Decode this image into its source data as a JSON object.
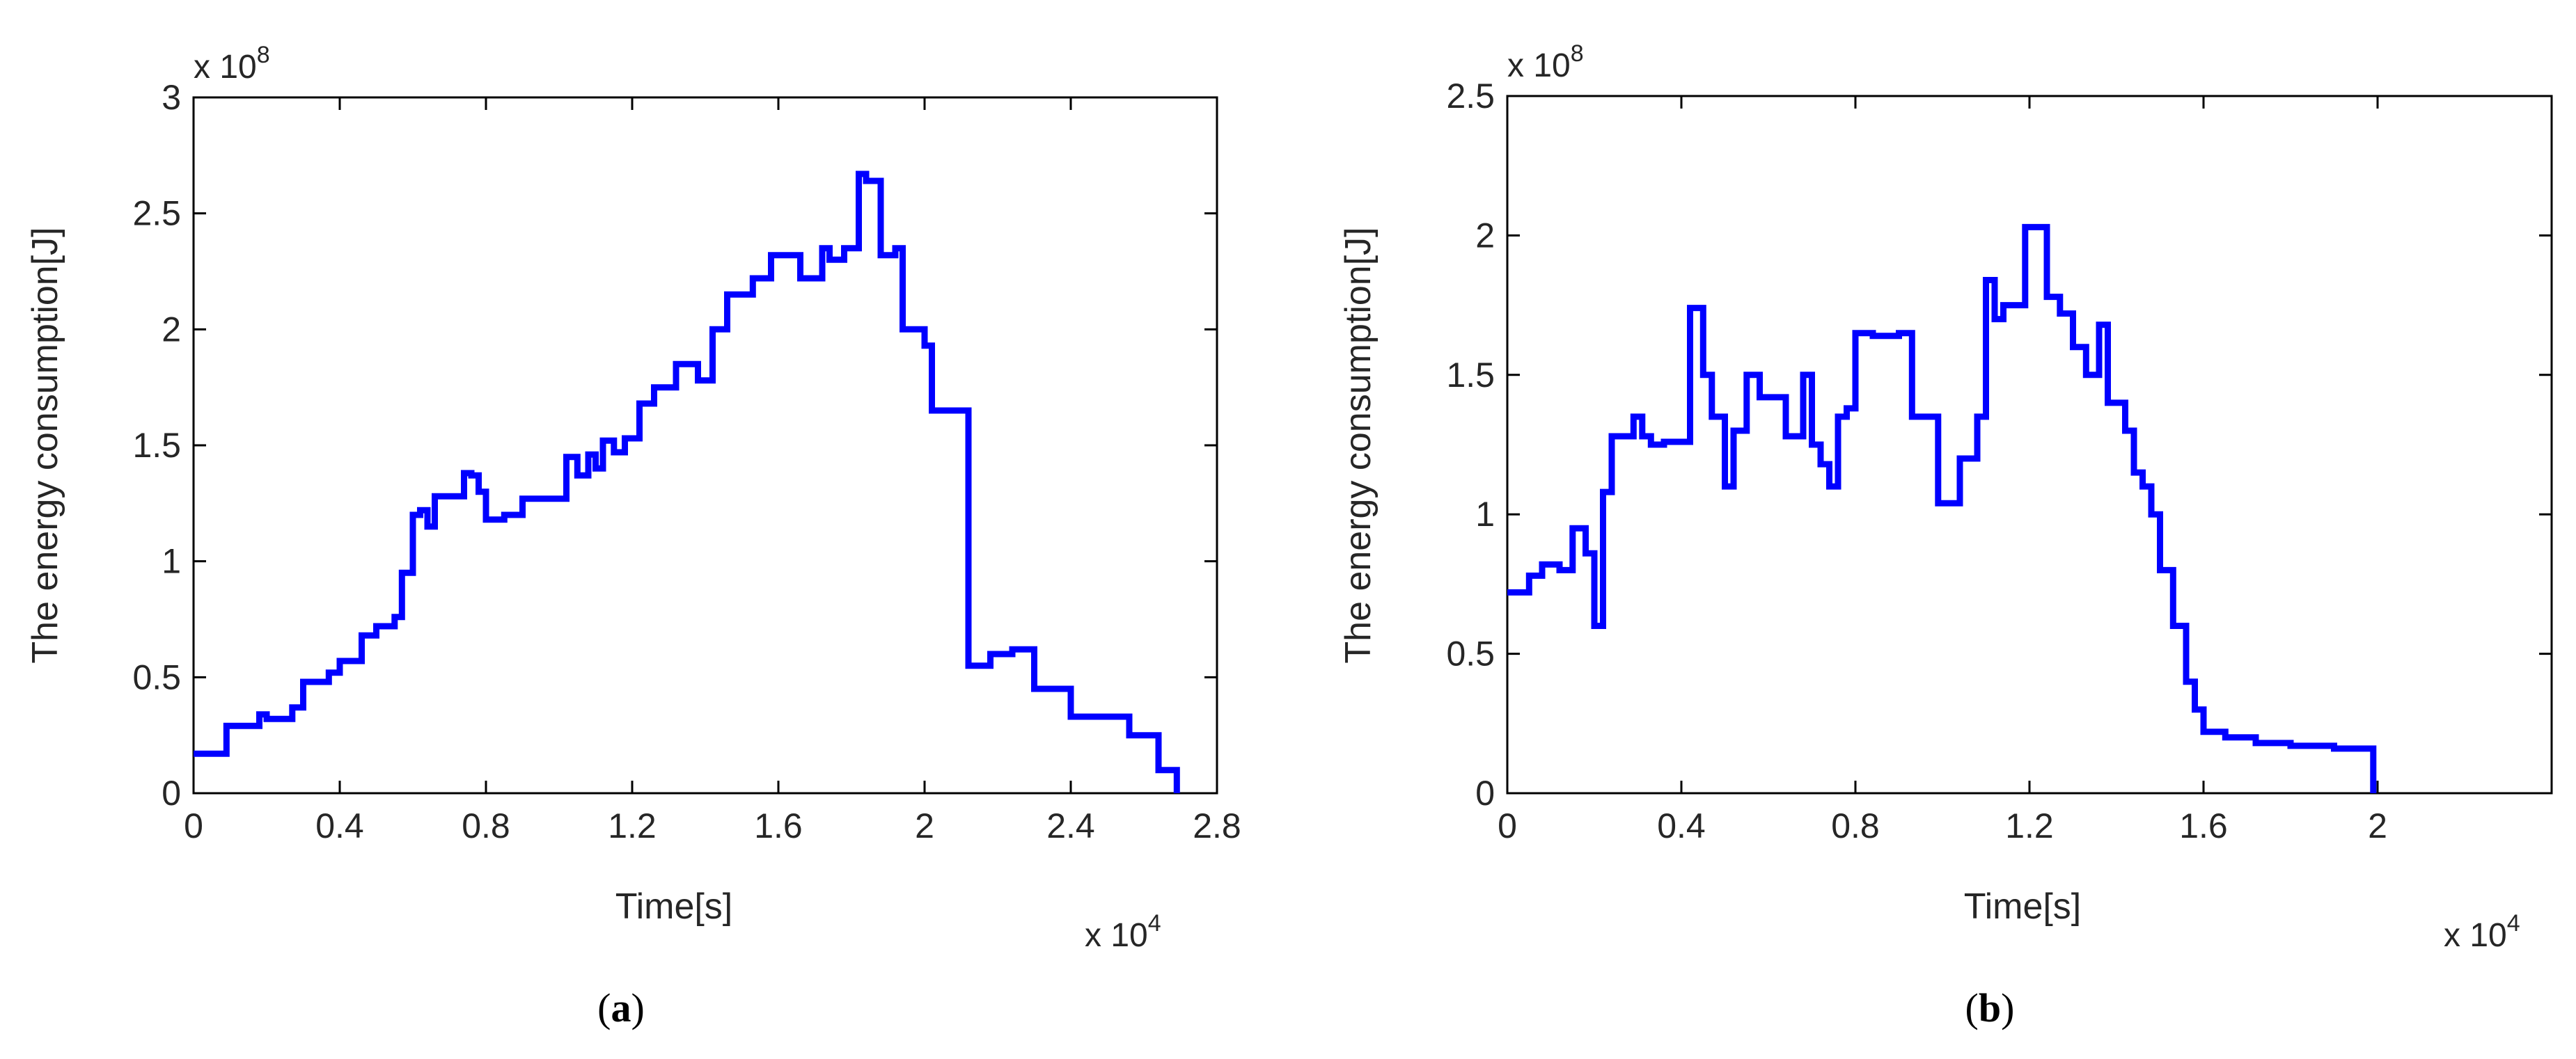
{
  "figure": {
    "panels": [
      {
        "caption_open": "(",
        "caption_letter": "a",
        "caption_close": ")",
        "x_multiplier": "x 10",
        "x_multiplier_exp": "4",
        "y_multiplier": "x 10",
        "y_multiplier_exp": "8"
      },
      {
        "caption_open": "(",
        "caption_letter": "b",
        "caption_close": ")",
        "x_multiplier": "x 10",
        "x_multiplier_exp": "4",
        "y_multiplier": "x 10",
        "y_multiplier_exp": "8"
      }
    ]
  },
  "chart_data": [
    {
      "type": "line",
      "title": "",
      "xlabel": "Time[s]",
      "ylabel": "The energy consumption[J]",
      "xlim": [
        0,
        2.8
      ],
      "ylim": [
        0,
        3
      ],
      "x_ticks": [
        0,
        0.4,
        0.8,
        1.2,
        1.6,
        2,
        2.4,
        2.8
      ],
      "x_tick_labels": [
        "0",
        "0.4",
        "0.8",
        "1.2",
        "1.6",
        "2",
        "2.4",
        "2.8"
      ],
      "y_ticks": [
        0,
        0.5,
        1,
        1.5,
        2,
        2.5,
        3
      ],
      "y_tick_labels": [
        "0",
        "0.5",
        "1",
        "1.5",
        "2",
        "2.5",
        "3"
      ],
      "grid": false,
      "line_color": "#0000ff",
      "series": [
        {
          "step": true,
          "x": [
            0,
            0.09,
            0.18,
            0.2,
            0.27,
            0.3,
            0.37,
            0.4,
            0.46,
            0.5,
            0.55,
            0.57,
            0.6,
            0.62,
            0.64,
            0.66,
            0.74,
            0.76,
            0.78,
            0.8,
            0.85,
            0.9,
            1.02,
            1.05,
            1.08,
            1.1,
            1.12,
            1.15,
            1.18,
            1.22,
            1.26,
            1.32,
            1.38,
            1.42,
            1.46,
            1.53,
            1.58,
            1.66,
            1.72,
            1.74,
            1.78,
            1.82,
            1.84,
            1.88,
            1.92,
            1.94,
            2.0,
            2.02,
            2.12,
            2.18,
            2.24,
            2.3,
            2.4,
            2.56,
            2.64,
            2.69
          ],
          "y": [
            0.17,
            0.29,
            0.34,
            0.32,
            0.37,
            0.48,
            0.52,
            0.57,
            0.68,
            0.72,
            0.76,
            0.95,
            1.2,
            1.22,
            1.15,
            1.28,
            1.38,
            1.37,
            1.3,
            1.18,
            1.2,
            1.27,
            1.45,
            1.37,
            1.46,
            1.4,
            1.52,
            1.47,
            1.53,
            1.68,
            1.75,
            1.85,
            1.78,
            2.0,
            2.15,
            2.22,
            2.32,
            2.22,
            2.35,
            2.3,
            2.35,
            2.67,
            2.64,
            2.32,
            2.35,
            2.0,
            1.93,
            1.65,
            0.55,
            0.6,
            0.62,
            0.45,
            0.33,
            0.25,
            0.1,
            0.0
          ]
        }
      ]
    },
    {
      "type": "line",
      "title": "",
      "xlabel": "Time[s]",
      "ylabel": "The energy consumption[J]",
      "xlim": [
        0,
        2.4
      ],
      "ylim": [
        0,
        2.5
      ],
      "x_ticks": [
        0,
        0.4,
        0.8,
        1.2,
        1.6,
        2
      ],
      "x_tick_labels": [
        "0",
        "0.4",
        "0.8",
        "1.2",
        "1.6",
        "2"
      ],
      "y_ticks": [
        0,
        0.5,
        1,
        1.5,
        2,
        2.5
      ],
      "y_tick_labels": [
        "0",
        "0.5",
        "1",
        "1.5",
        "2",
        "2.5"
      ],
      "grid": false,
      "line_color": "#0000ff",
      "series": [
        {
          "step": true,
          "x": [
            0,
            0.05,
            0.08,
            0.12,
            0.15,
            0.18,
            0.2,
            0.22,
            0.24,
            0.29,
            0.31,
            0.33,
            0.36,
            0.42,
            0.45,
            0.47,
            0.5,
            0.52,
            0.55,
            0.58,
            0.64,
            0.68,
            0.7,
            0.72,
            0.74,
            0.76,
            0.78,
            0.8,
            0.84,
            0.9,
            0.93,
            0.99,
            1.04,
            1.08,
            1.1,
            1.12,
            1.14,
            1.19,
            1.24,
            1.27,
            1.3,
            1.33,
            1.36,
            1.38,
            1.42,
            1.44,
            1.46,
            1.48,
            1.5,
            1.53,
            1.56,
            1.58,
            1.6,
            1.65,
            1.72,
            1.8,
            1.9,
            1.99
          ],
          "y": [
            0.72,
            0.78,
            0.82,
            0.8,
            0.95,
            0.86,
            0.6,
            1.08,
            1.28,
            1.35,
            1.28,
            1.25,
            1.26,
            1.74,
            1.5,
            1.35,
            1.1,
            1.3,
            1.5,
            1.42,
            1.28,
            1.5,
            1.25,
            1.18,
            1.1,
            1.35,
            1.38,
            1.65,
            1.64,
            1.65,
            1.35,
            1.04,
            1.2,
            1.35,
            1.84,
            1.7,
            1.75,
            2.03,
            1.78,
            1.72,
            1.6,
            1.5,
            1.68,
            1.4,
            1.3,
            1.15,
            1.1,
            1.0,
            0.8,
            0.6,
            0.4,
            0.3,
            0.22,
            0.2,
            0.18,
            0.17,
            0.16,
            0.0
          ]
        }
      ]
    }
  ]
}
